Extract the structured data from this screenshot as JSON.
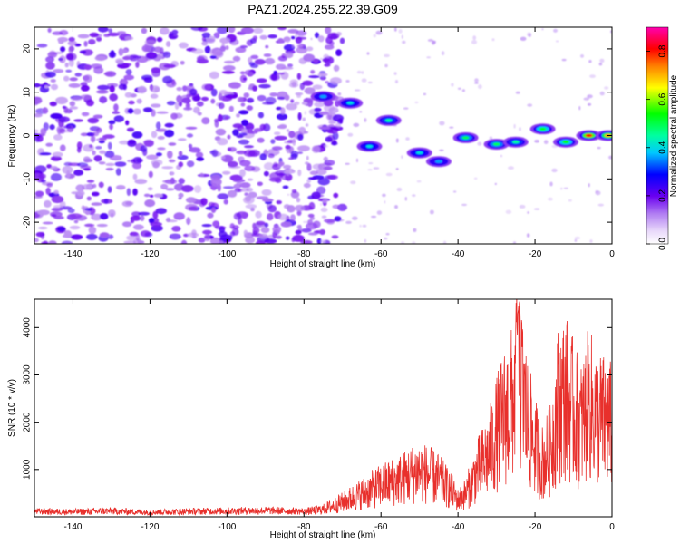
{
  "title": "PAZ1.2024.255.22.39.G09",
  "colors": {
    "snr_line": "#e8302c",
    "low_amplitude": "#c9a8f4",
    "mid_amplitude": "#7a1ff0"
  },
  "chart_data": [
    {
      "type": "heatmap",
      "xlabel": "Height of straight line (km)",
      "ylabel": "Frequency (Hz)",
      "xlim": [
        -150,
        0
      ],
      "ylim": [
        -25,
        25
      ],
      "xticks": [
        -140,
        -120,
        -100,
        -80,
        -60,
        -40,
        -20,
        0
      ],
      "yticks": [
        -20,
        -10,
        0,
        10,
        20
      ],
      "colorbar": {
        "label": "Normalized spectral amplitude",
        "range": [
          0.0,
          0.9
        ],
        "ticks": [
          0.0,
          0.2,
          0.4,
          0.6,
          0.8
        ],
        "colormap": "rainbow (white-purple-blue-cyan-green-yellow-red-magenta)"
      },
      "features": [
        {
          "x": -75,
          "y": 9,
          "amp": 0.4
        },
        {
          "x": -68,
          "y": 7.5,
          "amp": 0.45
        },
        {
          "x": -58,
          "y": 3.5,
          "amp": 0.5
        },
        {
          "x": -63,
          "y": -2.5,
          "amp": 0.45
        },
        {
          "x": -50,
          "y": -4,
          "amp": 0.45
        },
        {
          "x": -45,
          "y": -6,
          "amp": 0.4
        },
        {
          "x": -38,
          "y": -0.5,
          "amp": 0.55
        },
        {
          "x": -30,
          "y": -2,
          "amp": 0.55
        },
        {
          "x": -25,
          "y": -1.5,
          "amp": 0.5
        },
        {
          "x": -18,
          "y": 1.5,
          "amp": 0.6
        },
        {
          "x": -12,
          "y": -1.5,
          "amp": 0.6
        },
        {
          "x": -6,
          "y": 0,
          "amp": 0.9
        },
        {
          "x": -1,
          "y": 0,
          "amp": 0.8
        }
      ]
    },
    {
      "type": "line",
      "xlabel": "Height of straight line (km)",
      "ylabel": "SNR (10 * v/v)",
      "xlim": [
        -150,
        0
      ],
      "ylim": [
        0,
        4600
      ],
      "xticks": [
        -140,
        -120,
        -100,
        -80,
        -60,
        -40,
        -20,
        0
      ],
      "yticks": [
        1000,
        2000,
        3000,
        4000
      ],
      "series": [
        {
          "x": [
            -150,
            -140,
            -130,
            -120,
            -110,
            -100,
            -90,
            -80,
            -75,
            -70,
            -65,
            -60,
            -55,
            -50,
            -45,
            -42,
            -40,
            -38,
            -35,
            -32,
            -30,
            -28,
            -26,
            -24,
            -22,
            -20,
            -18,
            -16,
            -14,
            -12,
            -10,
            -8,
            -6,
            -4,
            -2,
            0
          ],
          "y": [
            120,
            110,
            130,
            100,
            120,
            130,
            140,
            120,
            180,
            350,
            550,
            750,
            900,
            1100,
            900,
            650,
            400,
            550,
            1100,
            1500,
            2000,
            2400,
            2700,
            3500,
            2300,
            1700,
            1300,
            1600,
            2700,
            2900,
            2500,
            2200,
            2700,
            2400,
            2300,
            2200
          ]
        }
      ]
    }
  ]
}
